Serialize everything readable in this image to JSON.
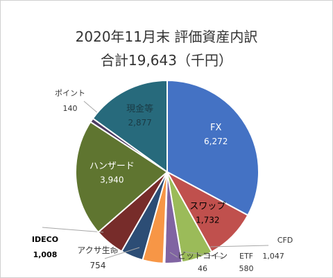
{
  "chart_data": {
    "type": "pie",
    "title": "2020年11月末 評価資産内訳",
    "subtitle": "合計19,643（千円）",
    "slices": [
      {
        "label": "FX",
        "value": 6272,
        "value_label": "6,272",
        "color": "#4472C4"
      },
      {
        "label": "スワップ",
        "value": 1732,
        "value_label": "1,732",
        "color": "#C0504D"
      },
      {
        "label": "CFD",
        "value": 1047,
        "value_label": "1,047",
        "color": "#9BBB59"
      },
      {
        "label": "ETF",
        "value": 580,
        "value_label": "580",
        "color": "#8064A2"
      },
      {
        "label": "ビットコイン",
        "value": 46,
        "value_label": "46",
        "color": "#4BACC6"
      },
      {
        "label": "",
        "value": 700,
        "value_label": "",
        "color": "#F79646"
      },
      {
        "label": "アクサ生命",
        "value": 754,
        "value_label": "754",
        "color": "#2C4D75"
      },
      {
        "label": "IDECO",
        "value": 1008,
        "value_label": "1,008",
        "color": "#772C2A"
      },
      {
        "label": "ハンザード",
        "value": 3940,
        "value_label": "3,940",
        "color": "#5F7530"
      },
      {
        "label": "ポイント",
        "value": 140,
        "value_label": "140",
        "color": "#4D3B62"
      },
      {
        "label": "現金等",
        "value": 2877,
        "value_label": "2,877",
        "color": "#276A7C"
      }
    ]
  }
}
